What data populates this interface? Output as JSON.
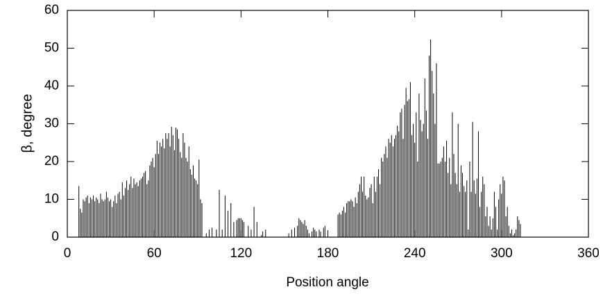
{
  "chart_data": {
    "type": "stem",
    "xlabel": "Position angle",
    "ylabel": "β, degree",
    "color": "#000000",
    "xlim": [
      0,
      360
    ],
    "xticks": [
      0,
      60,
      120,
      180,
      240,
      300,
      360
    ],
    "ylim": [
      0,
      60
    ],
    "yticks": [
      0,
      10,
      20,
      30,
      40,
      50,
      60
    ],
    "x": [
      8,
      9,
      10,
      11,
      12,
      13,
      14,
      15,
      16,
      17,
      18,
      19,
      20,
      21,
      22,
      23,
      24,
      25,
      26,
      27,
      28,
      29,
      30,
      31,
      32,
      33,
      34,
      35,
      36,
      37,
      38,
      39,
      40,
      41,
      42,
      43,
      44,
      45,
      46,
      47,
      48,
      49,
      50,
      51,
      52,
      53,
      54,
      55,
      56,
      57,
      58,
      59,
      60,
      61,
      62,
      63,
      64,
      65,
      66,
      67,
      68,
      69,
      70,
      71,
      72,
      73,
      74,
      75,
      76,
      77,
      78,
      79,
      80,
      81,
      82,
      83,
      84,
      85,
      86,
      87,
      88,
      89,
      90,
      91,
      92,
      93,
      96,
      98,
      100,
      103,
      105,
      107,
      109,
      111,
      113,
      115,
      117,
      118,
      119,
      120,
      121,
      122,
      125,
      127,
      129,
      131,
      134,
      135,
      137,
      153,
      155,
      157,
      159,
      160,
      161,
      162,
      163,
      164,
      165,
      166,
      167,
      169,
      170,
      171,
      172,
      174,
      175,
      177,
      178,
      187,
      188,
      189,
      190,
      191,
      192,
      193,
      194,
      195,
      196,
      197,
      198,
      199,
      200,
      201,
      202,
      203,
      204,
      205,
      206,
      207,
      208,
      209,
      210,
      211,
      212,
      213,
      214,
      215,
      216,
      217,
      218,
      219,
      220,
      221,
      222,
      223,
      224,
      225,
      226,
      227,
      228,
      229,
      230,
      231,
      232,
      233,
      234,
      235,
      236,
      237,
      238,
      239,
      240,
      241,
      242,
      243,
      244,
      245,
      246,
      247,
      248,
      249,
      250,
      251,
      252,
      253,
      254,
      255,
      256,
      257,
      258,
      259,
      260,
      261,
      262,
      263,
      264,
      265,
      266,
      267,
      268,
      269,
      270,
      271,
      272,
      273,
      274,
      275,
      276,
      277,
      278,
      279,
      280,
      281,
      282,
      283,
      284,
      285,
      286,
      287,
      288,
      289,
      290,
      291,
      292,
      293,
      294,
      295,
      296,
      297,
      298,
      299,
      300,
      301,
      302,
      303,
      304,
      305,
      306,
      307,
      308,
      309,
      310,
      311,
      312,
      313
    ],
    "values": [
      13.5,
      7.5,
      6.5,
      10,
      9.5,
      10.5,
      11,
      9,
      10.5,
      10,
      11,
      9.5,
      10.5,
      10,
      9,
      11.5,
      10,
      9.5,
      10,
      12,
      10.5,
      9.5,
      10,
      8,
      9.5,
      11,
      9,
      11.5,
      12,
      10,
      14.5,
      11,
      13,
      15,
      12.5,
      14,
      16,
      13,
      15.5,
      14,
      14.5,
      13.5,
      15,
      15.5,
      16,
      17,
      17.5,
      14,
      15,
      19,
      20,
      21,
      18.5,
      22,
      25.5,
      22,
      25,
      24,
      26,
      23.5,
      27.5,
      26,
      27.5,
      24,
      29.2,
      27,
      23,
      29,
      28.5,
      26,
      22.5,
      21,
      27.5,
      25,
      21,
      20,
      24,
      18,
      16.5,
      19,
      15.5,
      15,
      14,
      20.5,
      10,
      9,
      1,
      2,
      2.5,
      2,
      12.5,
      2,
      11,
      7,
      9,
      4,
      4.5,
      5,
      5,
      5,
      4.5,
      4,
      3,
      2,
      8,
      4,
      0.5,
      1.5,
      2,
      1,
      2,
      2.5,
      3,
      5,
      4.5,
      4,
      3.5,
      4.5,
      3,
      2,
      1,
      1.5,
      2.5,
      2,
      1.5,
      2,
      1.5,
      2.5,
      3,
      6,
      6.5,
      6,
      7,
      8,
      6.5,
      9,
      9.5,
      9.5,
      10,
      9.5,
      8,
      10.5,
      9,
      12,
      14,
      16,
      12,
      16,
      11,
      10,
      10.5,
      13,
      14,
      9,
      16,
      12,
      16,
      18,
      14,
      21,
      20,
      22,
      24,
      21,
      26,
      25,
      27,
      24,
      26,
      27,
      29.5,
      28,
      33,
      34,
      26,
      35,
      39.5,
      36,
      36.5,
      41,
      27,
      30,
      25,
      33,
      20,
      38,
      31,
      28,
      30,
      42,
      33.5,
      26,
      48,
      52.3,
      44,
      38,
      30,
      46,
      19.5,
      19.5,
      20,
      21,
      24,
      20,
      25.5,
      17,
      21,
      14,
      33,
      22,
      17,
      14,
      30,
      12,
      19,
      17,
      13.5,
      12,
      15,
      2,
      20,
      12,
      30.5,
      15,
      11.5,
      15.5,
      28,
      8,
      12,
      16,
      14,
      5.5,
      8,
      3,
      5.5,
      2,
      5,
      12,
      8,
      2,
      10,
      14,
      11.5,
      16,
      15,
      5.5,
      8,
      3,
      1,
      2,
      0.5,
      1,
      2,
      5.5,
      4.5,
      3.5
    ]
  }
}
